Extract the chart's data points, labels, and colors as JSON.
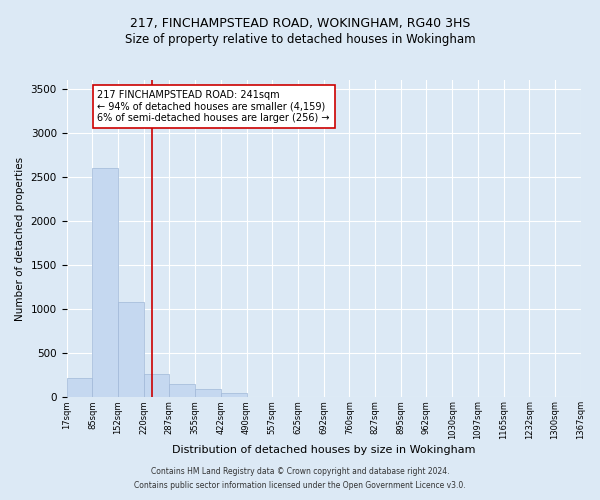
{
  "title_line1": "217, FINCHAMPSTEAD ROAD, WOKINGHAM, RG40 3HS",
  "title_line2": "Size of property relative to detached houses in Wokingham",
  "xlabel": "Distribution of detached houses by size in Wokingham",
  "ylabel": "Number of detached properties",
  "footer_line1": "Contains HM Land Registry data © Crown copyright and database right 2024.",
  "footer_line2": "Contains public sector information licensed under the Open Government Licence v3.0.",
  "bar_edges": [
    17,
    85,
    152,
    220,
    287,
    355,
    422,
    490,
    557,
    625,
    692,
    760,
    827,
    895,
    962,
    1030,
    1097,
    1165,
    1232,
    1300,
    1367
  ],
  "bar_heights": [
    220,
    2600,
    1080,
    270,
    155,
    90,
    45,
    0,
    0,
    0,
    0,
    0,
    0,
    0,
    0,
    0,
    0,
    0,
    0,
    0
  ],
  "bar_color": "#c5d8f0",
  "bar_edge_color": "#a0b8d8",
  "property_size": 241,
  "property_label": "217 FINCHAMPSTEAD ROAD: 241sqm",
  "annotation_line2": "← 94% of detached houses are smaller (4,159)",
  "annotation_line3": "6% of semi-detached houses are larger (256) →",
  "vline_color": "#cc0000",
  "annotation_box_color": "#cc0000",
  "ylim": [
    0,
    3600
  ],
  "yticks": [
    0,
    500,
    1000,
    1500,
    2000,
    2500,
    3000,
    3500
  ],
  "bg_color": "#dce9f5",
  "plot_bg_color": "#dce9f5",
  "grid_color": "#ffffff",
  "title_fontsize": 9,
  "subtitle_fontsize": 8.5,
  "annotation_fontsize": 7,
  "ylabel_fontsize": 7.5,
  "xlabel_fontsize": 8,
  "footer_fontsize": 5.5,
  "ytick_fontsize": 7.5,
  "xtick_fontsize": 6
}
